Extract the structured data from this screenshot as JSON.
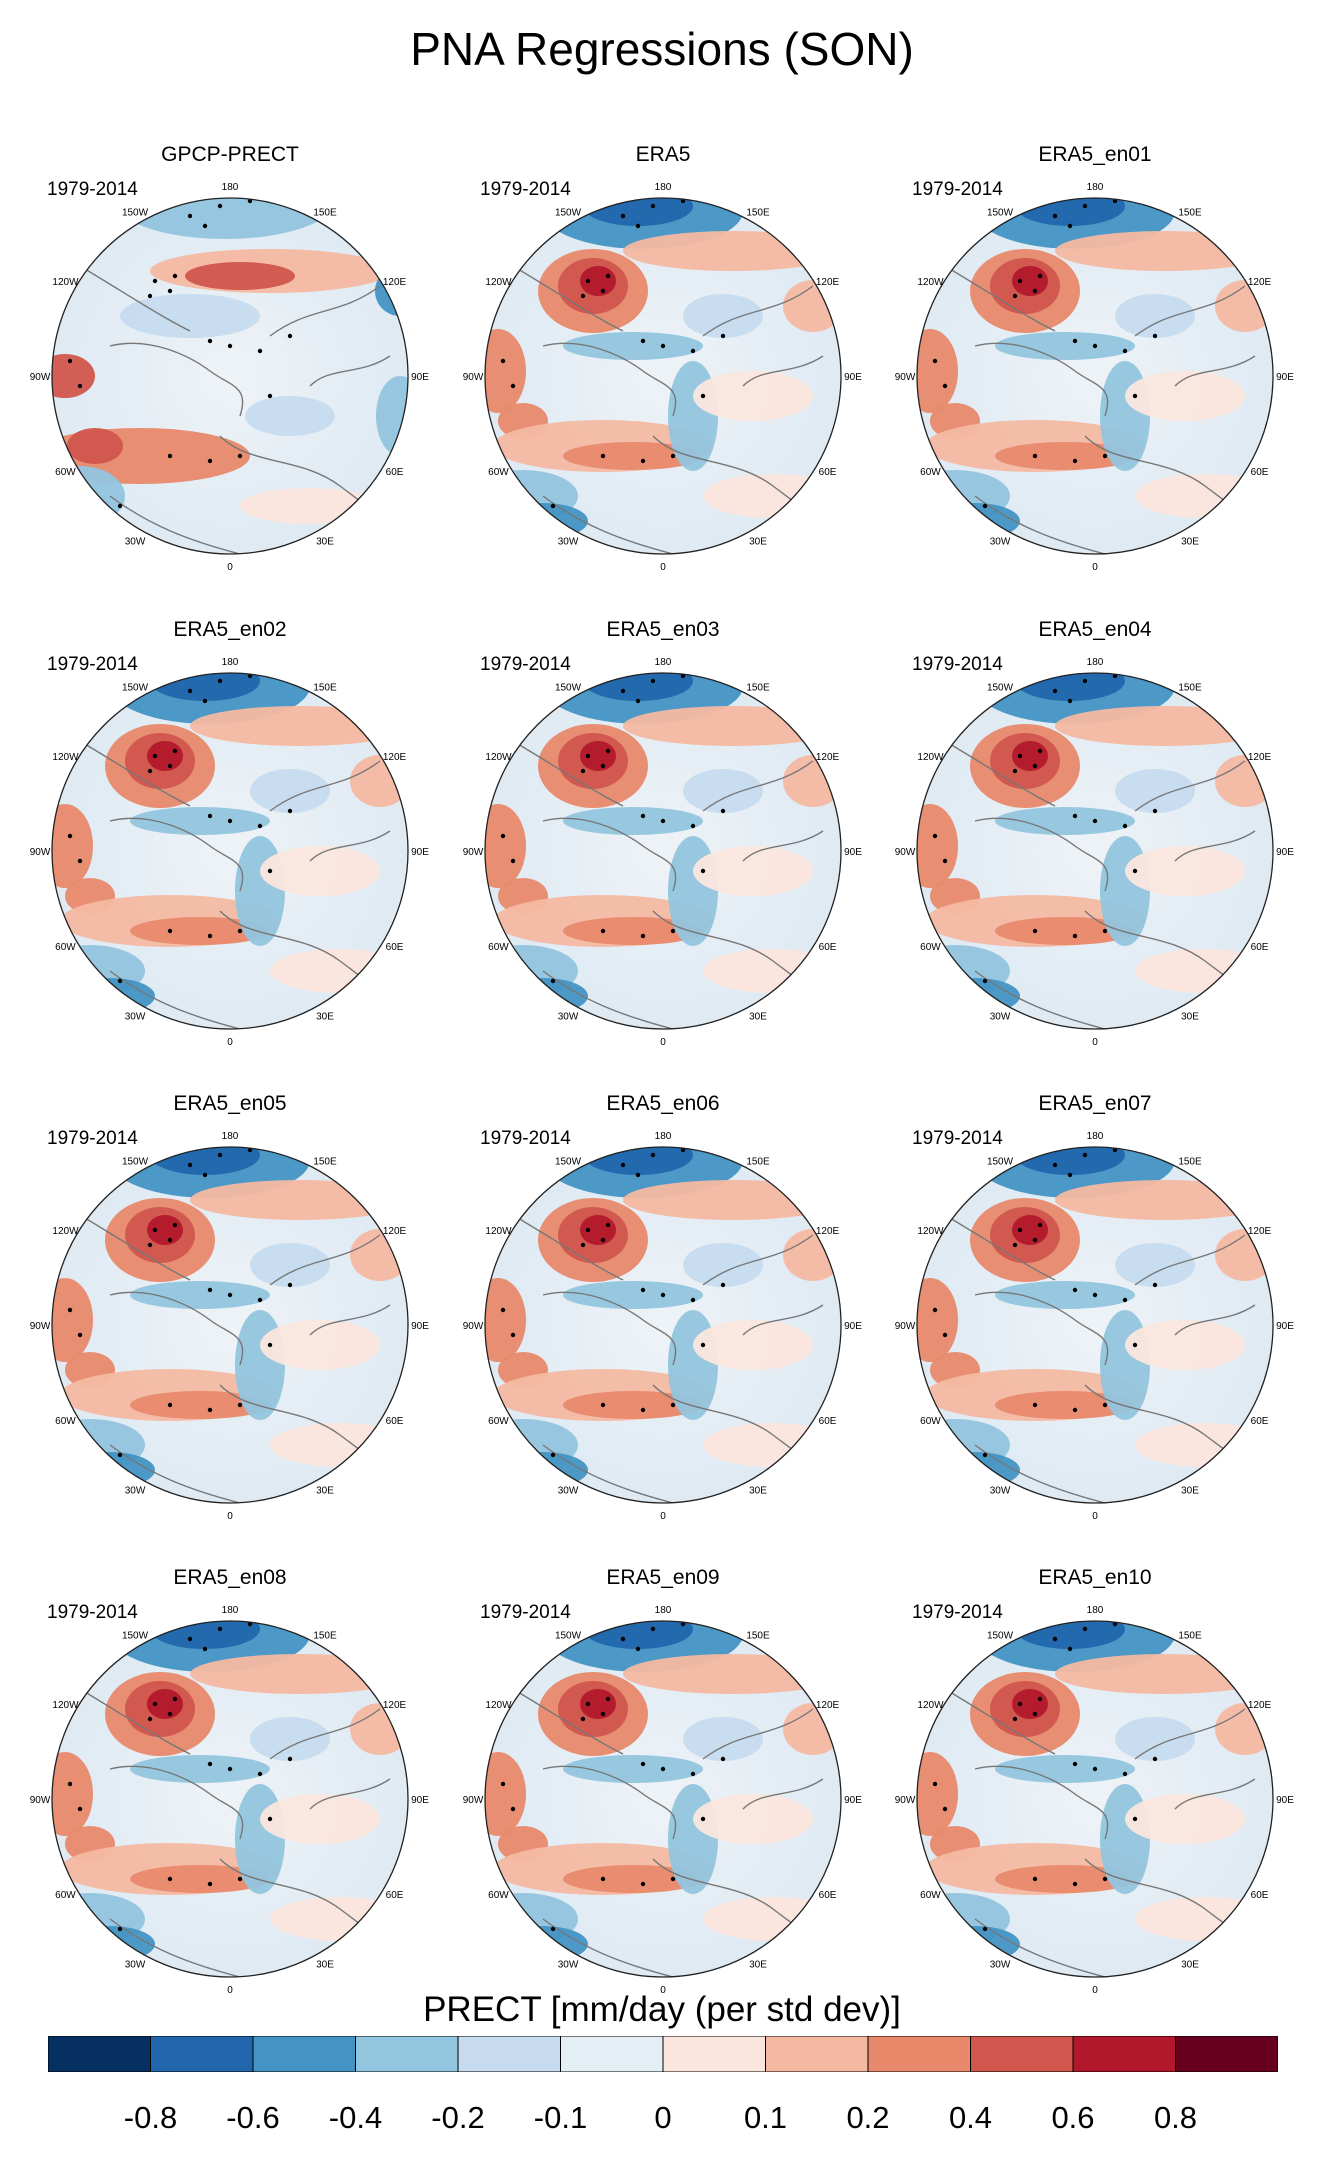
{
  "title": "PNA Regressions (SON)",
  "period": "1979-2014",
  "panels": [
    {
      "name": "GPCP-PRECT"
    },
    {
      "name": "ERA5"
    },
    {
      "name": "ERA5_en01"
    },
    {
      "name": "ERA5_en02"
    },
    {
      "name": "ERA5_en03"
    },
    {
      "name": "ERA5_en04"
    },
    {
      "name": "ERA5_en05"
    },
    {
      "name": "ERA5_en06"
    },
    {
      "name": "ERA5_en07"
    },
    {
      "name": "ERA5_en08"
    },
    {
      "name": "ERA5_en09"
    },
    {
      "name": "ERA5_en10"
    }
  ],
  "map_labels": [
    "180",
    "150E",
    "120E",
    "90E",
    "60E",
    "30E",
    "0",
    "30W",
    "60W",
    "90W",
    "120W",
    "150W"
  ],
  "colorbar": {
    "title": "PRECT [mm/day (per std dev)]",
    "tick_labels": [
      "-0.8",
      "-0.6",
      "-0.4",
      "-0.2",
      "-0.1",
      "0",
      "0.1",
      "0.2",
      "0.4",
      "0.6",
      "0.8"
    ],
    "colors": [
      "#053061",
      "#2166ac",
      "#4393c3",
      "#92c5de",
      "#c6dbef",
      "#e4eef5",
      "#fbe6dd",
      "#f4b9a2",
      "#e8896c",
      "#d1564d",
      "#b2182b",
      "#67001f"
    ]
  }
}
